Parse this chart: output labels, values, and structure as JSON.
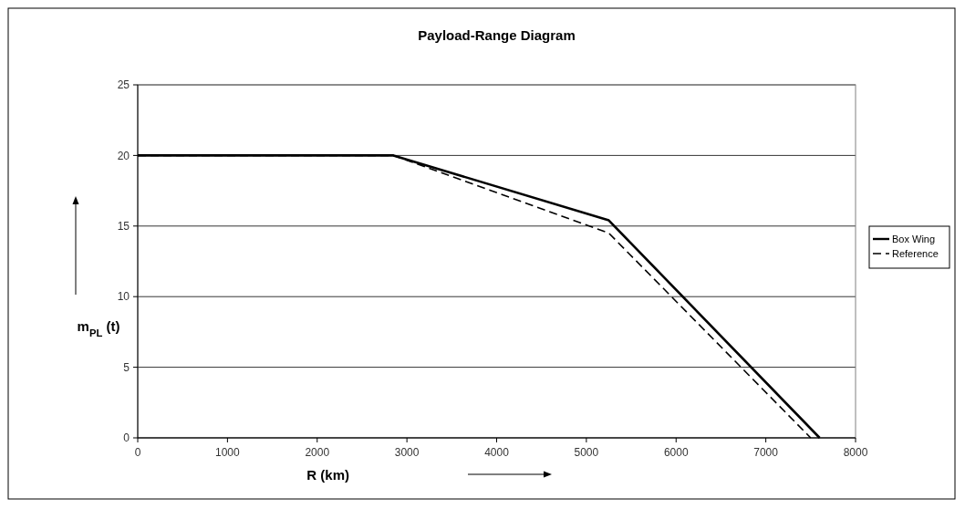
{
  "chart_data": {
    "type": "line",
    "title": "Payload-Range Diagram",
    "xlabel": "R (km)",
    "ylabel": "m$_{PL}$ (t)",
    "xlim": [
      0,
      8000
    ],
    "xticks": [
      0,
      1000,
      2000,
      3000,
      4000,
      5000,
      6000,
      7000,
      8000
    ],
    "ylim": [
      0,
      25
    ],
    "yticks": [
      0,
      5,
      10,
      15,
      20,
      25
    ],
    "grid": "y",
    "legend": "right",
    "marker": "none",
    "series": [
      {
        "name": "Box Wing",
        "color": "#000000",
        "line_style": "solid",
        "x": [
          0,
          2850,
          5250,
          7600
        ],
        "values": [
          20,
          20,
          15.4,
          0
        ]
      },
      {
        "name": "Reference",
        "color": "#000000",
        "line_style": "dashed",
        "x": [
          0,
          2850,
          5250,
          7500
        ],
        "values": [
          20,
          20,
          14.5,
          0
        ]
      }
    ]
  }
}
